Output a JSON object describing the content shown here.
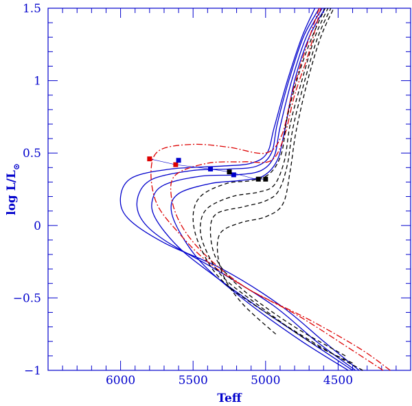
{
  "chart_data": {
    "type": "line",
    "xlabel": "Teff",
    "ylabel": "log L/L",
    "ylabel_symbol": "⊙",
    "xlim": [
      6500,
      4000
    ],
    "ylim": [
      -1,
      1.5
    ],
    "x_ticks": [
      6000,
      5500,
      5000,
      4500
    ],
    "x_tick_labels": [
      "6000",
      "5500",
      "5000",
      "4500"
    ],
    "y_ticks": [
      -1,
      -0.5,
      0,
      0.5,
      1,
      1.5
    ],
    "y_tick_labels": [
      "−1",
      "−0.5",
      "0",
      "0.5",
      "1",
      "1.5"
    ],
    "grid": false,
    "colors": {
      "axis": "#0000cc",
      "blue": "#0000cc",
      "red": "#dd0000",
      "black": "#000000"
    },
    "series": [
      {
        "style": "blue-solid",
        "points": [
          [
            4355,
            -1.0
          ],
          [
            4600,
            -0.8
          ],
          [
            4900,
            -0.55
          ],
          [
            5300,
            -0.3
          ],
          [
            5700,
            -0.12
          ],
          [
            5950,
            0.05
          ],
          [
            6000,
            0.2
          ],
          [
            5920,
            0.33
          ],
          [
            5650,
            0.39
          ],
          [
            5300,
            0.41
          ],
          [
            5100,
            0.43
          ],
          [
            4990,
            0.5
          ],
          [
            4940,
            0.68
          ],
          [
            4850,
            1.0
          ],
          [
            4750,
            1.3
          ],
          [
            4660,
            1.5
          ]
        ]
      },
      {
        "style": "blue-solid",
        "points": [
          [
            4380,
            -1.0
          ],
          [
            4650,
            -0.8
          ],
          [
            4950,
            -0.55
          ],
          [
            5350,
            -0.3
          ],
          [
            5700,
            -0.1
          ],
          [
            5860,
            0.05
          ],
          [
            5880,
            0.2
          ],
          [
            5780,
            0.32
          ],
          [
            5500,
            0.38
          ],
          [
            5250,
            0.39
          ],
          [
            5060,
            0.41
          ],
          [
            4960,
            0.5
          ],
          [
            4920,
            0.7
          ],
          [
            4840,
            1.0
          ],
          [
            4740,
            1.3
          ],
          [
            4630,
            1.5
          ]
        ]
      },
      {
        "style": "blue-solid",
        "points": [
          [
            4400,
            -1.0
          ],
          [
            4700,
            -0.8
          ],
          [
            5000,
            -0.6
          ],
          [
            5350,
            -0.35
          ],
          [
            5600,
            -0.15
          ],
          [
            5760,
            0.05
          ],
          [
            5780,
            0.18
          ],
          [
            5700,
            0.28
          ],
          [
            5450,
            0.34
          ],
          [
            5200,
            0.35
          ],
          [
            5030,
            0.38
          ],
          [
            4940,
            0.48
          ],
          [
            4900,
            0.68
          ],
          [
            4820,
            1.0
          ],
          [
            4720,
            1.3
          ],
          [
            4610,
            1.5
          ]
        ]
      },
      {
        "style": "blue-solid",
        "points": [
          [
            4430,
            -1.0
          ],
          [
            4750,
            -0.8
          ],
          [
            5100,
            -0.55
          ],
          [
            5400,
            -0.3
          ],
          [
            5560,
            -0.1
          ],
          [
            5650,
            0.1
          ],
          [
            5600,
            0.22
          ],
          [
            5380,
            0.29
          ],
          [
            5180,
            0.31
          ],
          [
            5020,
            0.34
          ],
          [
            4920,
            0.45
          ],
          [
            4870,
            0.65
          ],
          [
            4800,
            1.0
          ],
          [
            4700,
            1.3
          ],
          [
            4590,
            1.5
          ]
        ]
      },
      {
        "style": "red-dashdot",
        "points": [
          [
            4140,
            -1.0
          ],
          [
            4350,
            -0.85
          ],
          [
            4700,
            -0.65
          ],
          [
            5100,
            -0.45
          ],
          [
            5400,
            -0.25
          ],
          [
            5600,
            -0.05
          ],
          [
            5750,
            0.15
          ],
          [
            5790,
            0.38
          ],
          [
            5730,
            0.52
          ],
          [
            5500,
            0.56
          ],
          [
            5250,
            0.54
          ],
          [
            5000,
            0.5
          ],
          [
            4890,
            0.62
          ],
          [
            4820,
            0.9
          ],
          [
            4730,
            1.2
          ],
          [
            4630,
            1.5
          ]
        ]
      },
      {
        "style": "red-dashdot",
        "points": [
          [
            4190,
            -1.0
          ],
          [
            4420,
            -0.85
          ],
          [
            4780,
            -0.62
          ],
          [
            5150,
            -0.42
          ],
          [
            5420,
            -0.2
          ],
          [
            5580,
            0.0
          ],
          [
            5650,
            0.2
          ],
          [
            5620,
            0.35
          ],
          [
            5400,
            0.43
          ],
          [
            5150,
            0.44
          ],
          [
            4960,
            0.45
          ],
          [
            4870,
            0.62
          ],
          [
            4800,
            0.9
          ],
          [
            4700,
            1.2
          ],
          [
            4620,
            1.5
          ]
        ]
      },
      {
        "style": "black-dashed",
        "points": [
          [
            4330,
            -1.0
          ],
          [
            4600,
            -0.85
          ],
          [
            5000,
            -0.6
          ],
          [
            5300,
            -0.38
          ],
          [
            5450,
            -0.15
          ],
          [
            5500,
            0.05
          ],
          [
            5450,
            0.2
          ],
          [
            5270,
            0.29
          ],
          [
            5100,
            0.31
          ],
          [
            4970,
            0.36
          ],
          [
            4890,
            0.5
          ],
          [
            4850,
            0.75
          ],
          [
            4770,
            1.05
          ],
          [
            4680,
            1.3
          ],
          [
            4590,
            1.5
          ]
        ]
      },
      {
        "style": "black-dashed",
        "points": [
          [
            4400,
            -0.95
          ],
          [
            4700,
            -0.8
          ],
          [
            5050,
            -0.55
          ],
          [
            5300,
            -0.35
          ],
          [
            5420,
            -0.15
          ],
          [
            5450,
            0.0
          ],
          [
            5400,
            0.12
          ],
          [
            5230,
            0.2
          ],
          [
            5050,
            0.23
          ],
          [
            4940,
            0.28
          ],
          [
            4870,
            0.45
          ],
          [
            4830,
            0.7
          ],
          [
            4750,
            1.0
          ],
          [
            4660,
            1.3
          ],
          [
            4570,
            1.5
          ]
        ]
      },
      {
        "style": "black-dashed",
        "points": [
          [
            4450,
            -0.9
          ],
          [
            4800,
            -0.7
          ],
          [
            5150,
            -0.45
          ],
          [
            5330,
            -0.25
          ],
          [
            5380,
            -0.05
          ],
          [
            5340,
            0.08
          ],
          [
            5150,
            0.13
          ],
          [
            5000,
            0.17
          ],
          [
            4910,
            0.24
          ],
          [
            4850,
            0.42
          ],
          [
            4810,
            0.68
          ],
          [
            4730,
            1.0
          ],
          [
            4640,
            1.3
          ],
          [
            4550,
            1.5
          ]
        ]
      },
      {
        "style": "black-dashed",
        "points": [
          [
            4930,
            -0.75
          ],
          [
            5150,
            -0.55
          ],
          [
            5280,
            -0.37
          ],
          [
            5330,
            -0.2
          ],
          [
            5310,
            -0.05
          ],
          [
            5170,
            0.02
          ],
          [
            5000,
            0.06
          ],
          [
            4880,
            0.15
          ],
          [
            4830,
            0.38
          ],
          [
            4790,
            0.65
          ],
          [
            4710,
            1.0
          ],
          [
            4620,
            1.3
          ],
          [
            4530,
            1.5
          ]
        ]
      }
    ],
    "connector": {
      "style": "thin",
      "points": [
        [
          5800,
          0.46
        ],
        [
          5620,
          0.42
        ],
        [
          5380,
          0.39
        ],
        [
          5250,
          0.37
        ],
        [
          5070,
          0.32
        ],
        [
          5000,
          0.32
        ]
      ]
    },
    "markers": [
      {
        "x": 5800,
        "y": 0.46,
        "color": "red"
      },
      {
        "x": 5620,
        "y": 0.42,
        "color": "red"
      },
      {
        "x": 5600,
        "y": 0.45,
        "color": "blue"
      },
      {
        "x": 5380,
        "y": 0.39,
        "color": "blue"
      },
      {
        "x": 5220,
        "y": 0.35,
        "color": "blue"
      },
      {
        "x": 5250,
        "y": 0.37,
        "color": "black"
      },
      {
        "x": 5050,
        "y": 0.32,
        "color": "black"
      },
      {
        "x": 5000,
        "y": 0.32,
        "color": "black"
      }
    ]
  }
}
